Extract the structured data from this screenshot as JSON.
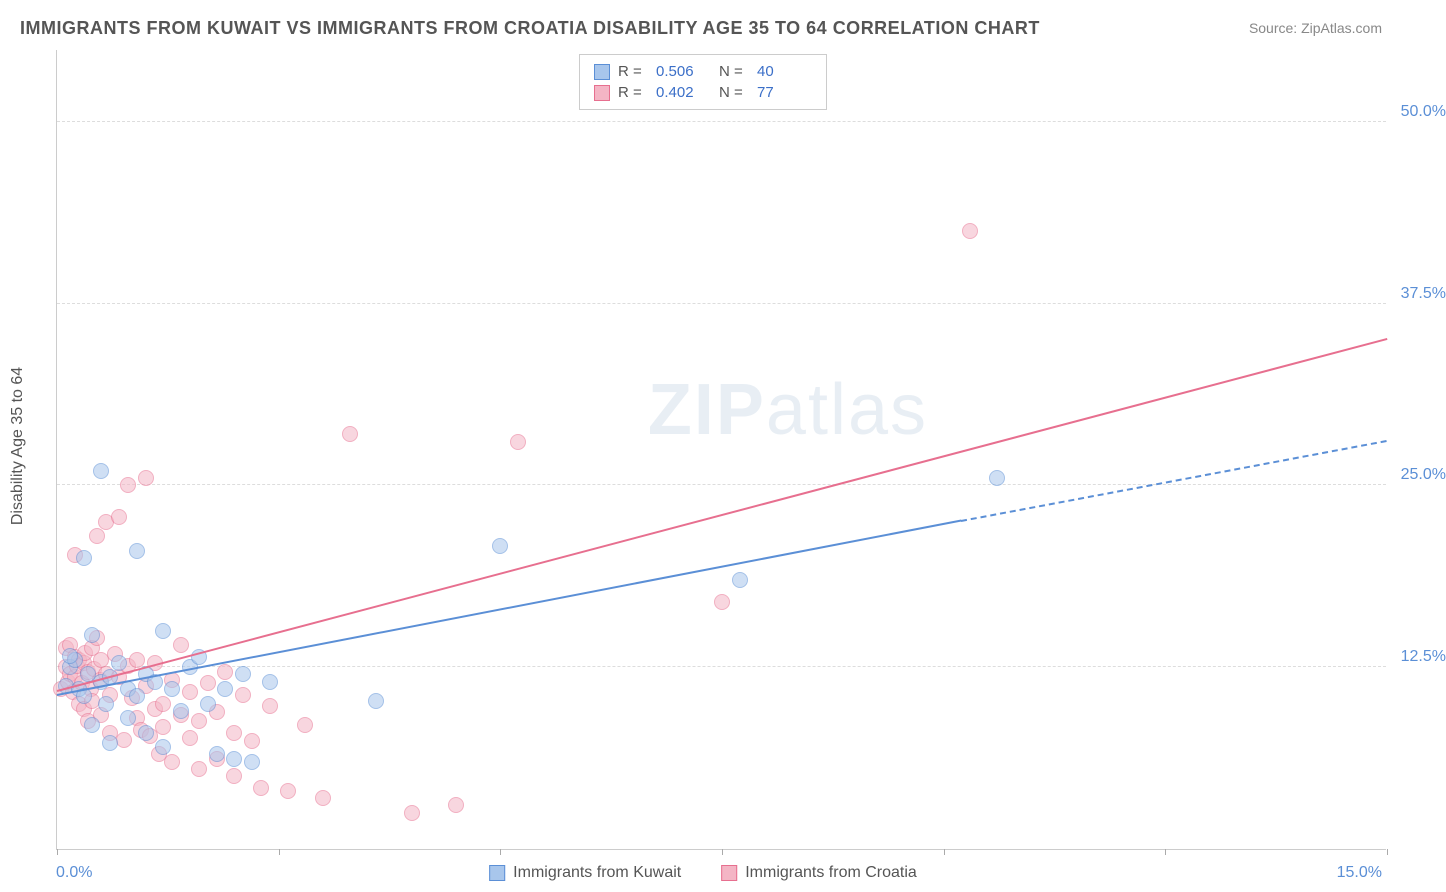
{
  "title": "IMMIGRANTS FROM KUWAIT VS IMMIGRANTS FROM CROATIA DISABILITY AGE 35 TO 64 CORRELATION CHART",
  "source": "Source: ZipAtlas.com",
  "ylabel": "Disability Age 35 to 64",
  "watermark_a": "ZIP",
  "watermark_b": "atlas",
  "chart": {
    "type": "scatter-with-trend",
    "xlim": [
      0,
      15
    ],
    "ylim": [
      0,
      55
    ],
    "ytick_values": [
      12.5,
      25.0,
      37.5,
      50.0
    ],
    "ytick_labels": [
      "12.5%",
      "25.0%",
      "37.5%",
      "50.0%"
    ],
    "xtick_values": [
      0,
      2.5,
      5.0,
      7.5,
      10.0,
      12.5,
      15.0
    ],
    "x_min_label": "0.0%",
    "x_max_label": "15.0%",
    "background_color": "#ffffff",
    "grid_color": "#dddddd",
    "axis_color": "#cccccc",
    "tick_label_color": "#5b8fd6",
    "marker_radius": 8,
    "marker_opacity": 0.55,
    "trend_line_width": 2
  },
  "series": [
    {
      "name": "Immigrants from Kuwait",
      "color_fill": "#a8c6ec",
      "color_stroke": "#5b8fd6",
      "R": "0.506",
      "N": "40",
      "trend": {
        "x1": 0,
        "y1": 10.5,
        "x2": 10.2,
        "y2": 22.5,
        "extend_x2": 15,
        "extend_y2": 28.0,
        "dashed_extend": true
      },
      "points": [
        [
          0.1,
          11.2
        ],
        [
          0.15,
          12.5
        ],
        [
          0.2,
          13.0
        ],
        [
          0.25,
          11.0
        ],
        [
          0.3,
          10.5
        ],
        [
          0.3,
          20.0
        ],
        [
          0.35,
          12.0
        ],
        [
          0.4,
          14.7
        ],
        [
          0.4,
          8.5
        ],
        [
          0.5,
          11.5
        ],
        [
          0.5,
          26.0
        ],
        [
          0.55,
          10.0
        ],
        [
          0.6,
          11.8
        ],
        [
          0.6,
          7.3
        ],
        [
          0.7,
          12.8
        ],
        [
          0.8,
          9.0
        ],
        [
          0.8,
          11.0
        ],
        [
          0.9,
          10.5
        ],
        [
          0.9,
          20.5
        ],
        [
          1.0,
          12.0
        ],
        [
          1.0,
          8.0
        ],
        [
          1.1,
          11.5
        ],
        [
          1.2,
          7.0
        ],
        [
          1.2,
          15.0
        ],
        [
          1.3,
          11.0
        ],
        [
          1.4,
          9.5
        ],
        [
          1.5,
          12.5
        ],
        [
          1.6,
          13.2
        ],
        [
          1.7,
          10.0
        ],
        [
          1.8,
          6.5
        ],
        [
          1.9,
          11.0
        ],
        [
          2.0,
          6.2
        ],
        [
          2.1,
          12.0
        ],
        [
          2.2,
          6.0
        ],
        [
          2.4,
          11.5
        ],
        [
          3.6,
          10.2
        ],
        [
          5.0,
          20.8
        ],
        [
          7.7,
          18.5
        ],
        [
          10.6,
          25.5
        ],
        [
          0.15,
          13.3
        ]
      ]
    },
    {
      "name": "Immigrants from Croatia",
      "color_fill": "#f4b5c5",
      "color_stroke": "#e76f8f",
      "R": "0.402",
      "N": "77",
      "trend": {
        "x1": 0,
        "y1": 10.8,
        "x2": 15,
        "y2": 35.0,
        "dashed_extend": false
      },
      "points": [
        [
          0.05,
          11.0
        ],
        [
          0.1,
          12.5
        ],
        [
          0.1,
          13.8
        ],
        [
          0.12,
          11.5
        ],
        [
          0.15,
          12.0
        ],
        [
          0.15,
          14.0
        ],
        [
          0.18,
          10.8
        ],
        [
          0.2,
          13.2
        ],
        [
          0.2,
          11.8
        ],
        [
          0.2,
          20.2
        ],
        [
          0.22,
          12.6
        ],
        [
          0.25,
          10.0
        ],
        [
          0.25,
          13.0
        ],
        [
          0.28,
          11.4
        ],
        [
          0.3,
          12.8
        ],
        [
          0.3,
          9.6
        ],
        [
          0.32,
          13.5
        ],
        [
          0.35,
          12.2
        ],
        [
          0.35,
          8.8
        ],
        [
          0.38,
          11.0
        ],
        [
          0.4,
          13.8
        ],
        [
          0.4,
          10.2
        ],
        [
          0.42,
          12.4
        ],
        [
          0.45,
          14.5
        ],
        [
          0.45,
          21.5
        ],
        [
          0.48,
          11.6
        ],
        [
          0.5,
          9.2
        ],
        [
          0.5,
          13.0
        ],
        [
          0.55,
          22.5
        ],
        [
          0.55,
          12.0
        ],
        [
          0.6,
          10.6
        ],
        [
          0.6,
          8.0
        ],
        [
          0.65,
          13.4
        ],
        [
          0.7,
          11.8
        ],
        [
          0.7,
          22.8
        ],
        [
          0.75,
          7.5
        ],
        [
          0.8,
          12.6
        ],
        [
          0.8,
          25.0
        ],
        [
          0.85,
          10.4
        ],
        [
          0.9,
          9.0
        ],
        [
          0.9,
          13.0
        ],
        [
          0.95,
          8.2
        ],
        [
          1.0,
          11.2
        ],
        [
          1.0,
          25.5
        ],
        [
          1.05,
          7.8
        ],
        [
          1.1,
          12.8
        ],
        [
          1.1,
          9.6
        ],
        [
          1.15,
          6.5
        ],
        [
          1.2,
          10.0
        ],
        [
          1.2,
          8.4
        ],
        [
          1.3,
          11.6
        ],
        [
          1.3,
          6.0
        ],
        [
          1.4,
          9.2
        ],
        [
          1.4,
          14.0
        ],
        [
          1.5,
          7.6
        ],
        [
          1.5,
          10.8
        ],
        [
          1.6,
          8.8
        ],
        [
          1.6,
          5.5
        ],
        [
          1.7,
          11.4
        ],
        [
          1.8,
          9.4
        ],
        [
          1.8,
          6.2
        ],
        [
          1.9,
          12.2
        ],
        [
          2.0,
          8.0
        ],
        [
          2.0,
          5.0
        ],
        [
          2.1,
          10.6
        ],
        [
          2.2,
          7.4
        ],
        [
          2.3,
          4.2
        ],
        [
          2.4,
          9.8
        ],
        [
          2.6,
          4.0
        ],
        [
          2.8,
          8.5
        ],
        [
          3.0,
          3.5
        ],
        [
          3.3,
          28.5
        ],
        [
          4.0,
          2.5
        ],
        [
          4.5,
          3.0
        ],
        [
          5.2,
          28.0
        ],
        [
          7.5,
          17.0
        ],
        [
          10.3,
          42.5
        ]
      ]
    }
  ],
  "legend_top_labels": {
    "R": "R =",
    "N": "N ="
  },
  "bottom_legend": [
    "Immigrants from Kuwait",
    "Immigrants from Croatia"
  ]
}
